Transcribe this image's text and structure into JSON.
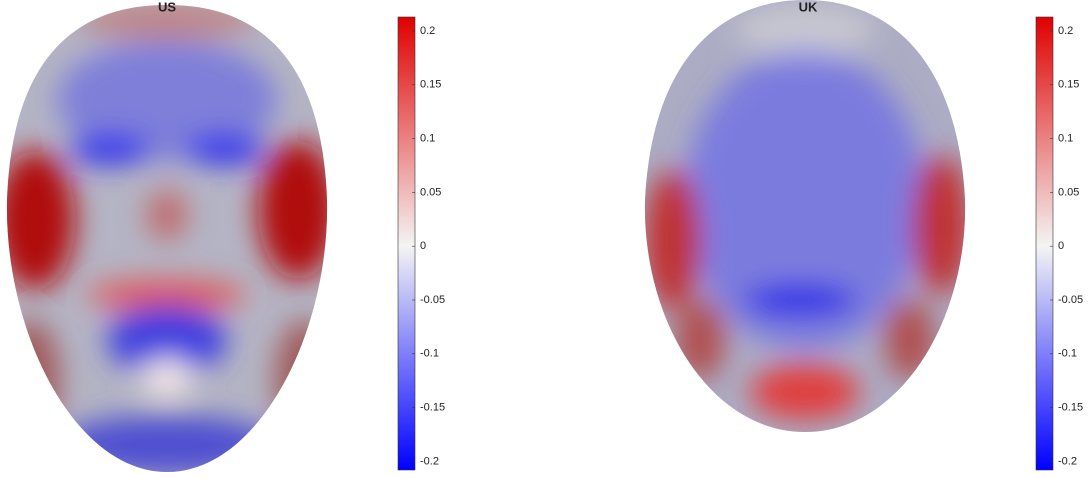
{
  "chart_data": [
    {
      "type": "heatmap",
      "title": "US",
      "clim": [
        -0.208,
        0.213
      ],
      "cticks": [
        -0.2,
        -0.15,
        -0.1,
        -0.05,
        0,
        0.05,
        0.1,
        0.15,
        0.2
      ]
    },
    {
      "type": "heatmap",
      "title": "UK",
      "clim": [
        -0.208,
        0.213
      ],
      "cticks": [
        -0.2,
        -0.15,
        -0.1,
        -0.05,
        0,
        0.05,
        0.1,
        0.15,
        0.2
      ]
    }
  ]
}
